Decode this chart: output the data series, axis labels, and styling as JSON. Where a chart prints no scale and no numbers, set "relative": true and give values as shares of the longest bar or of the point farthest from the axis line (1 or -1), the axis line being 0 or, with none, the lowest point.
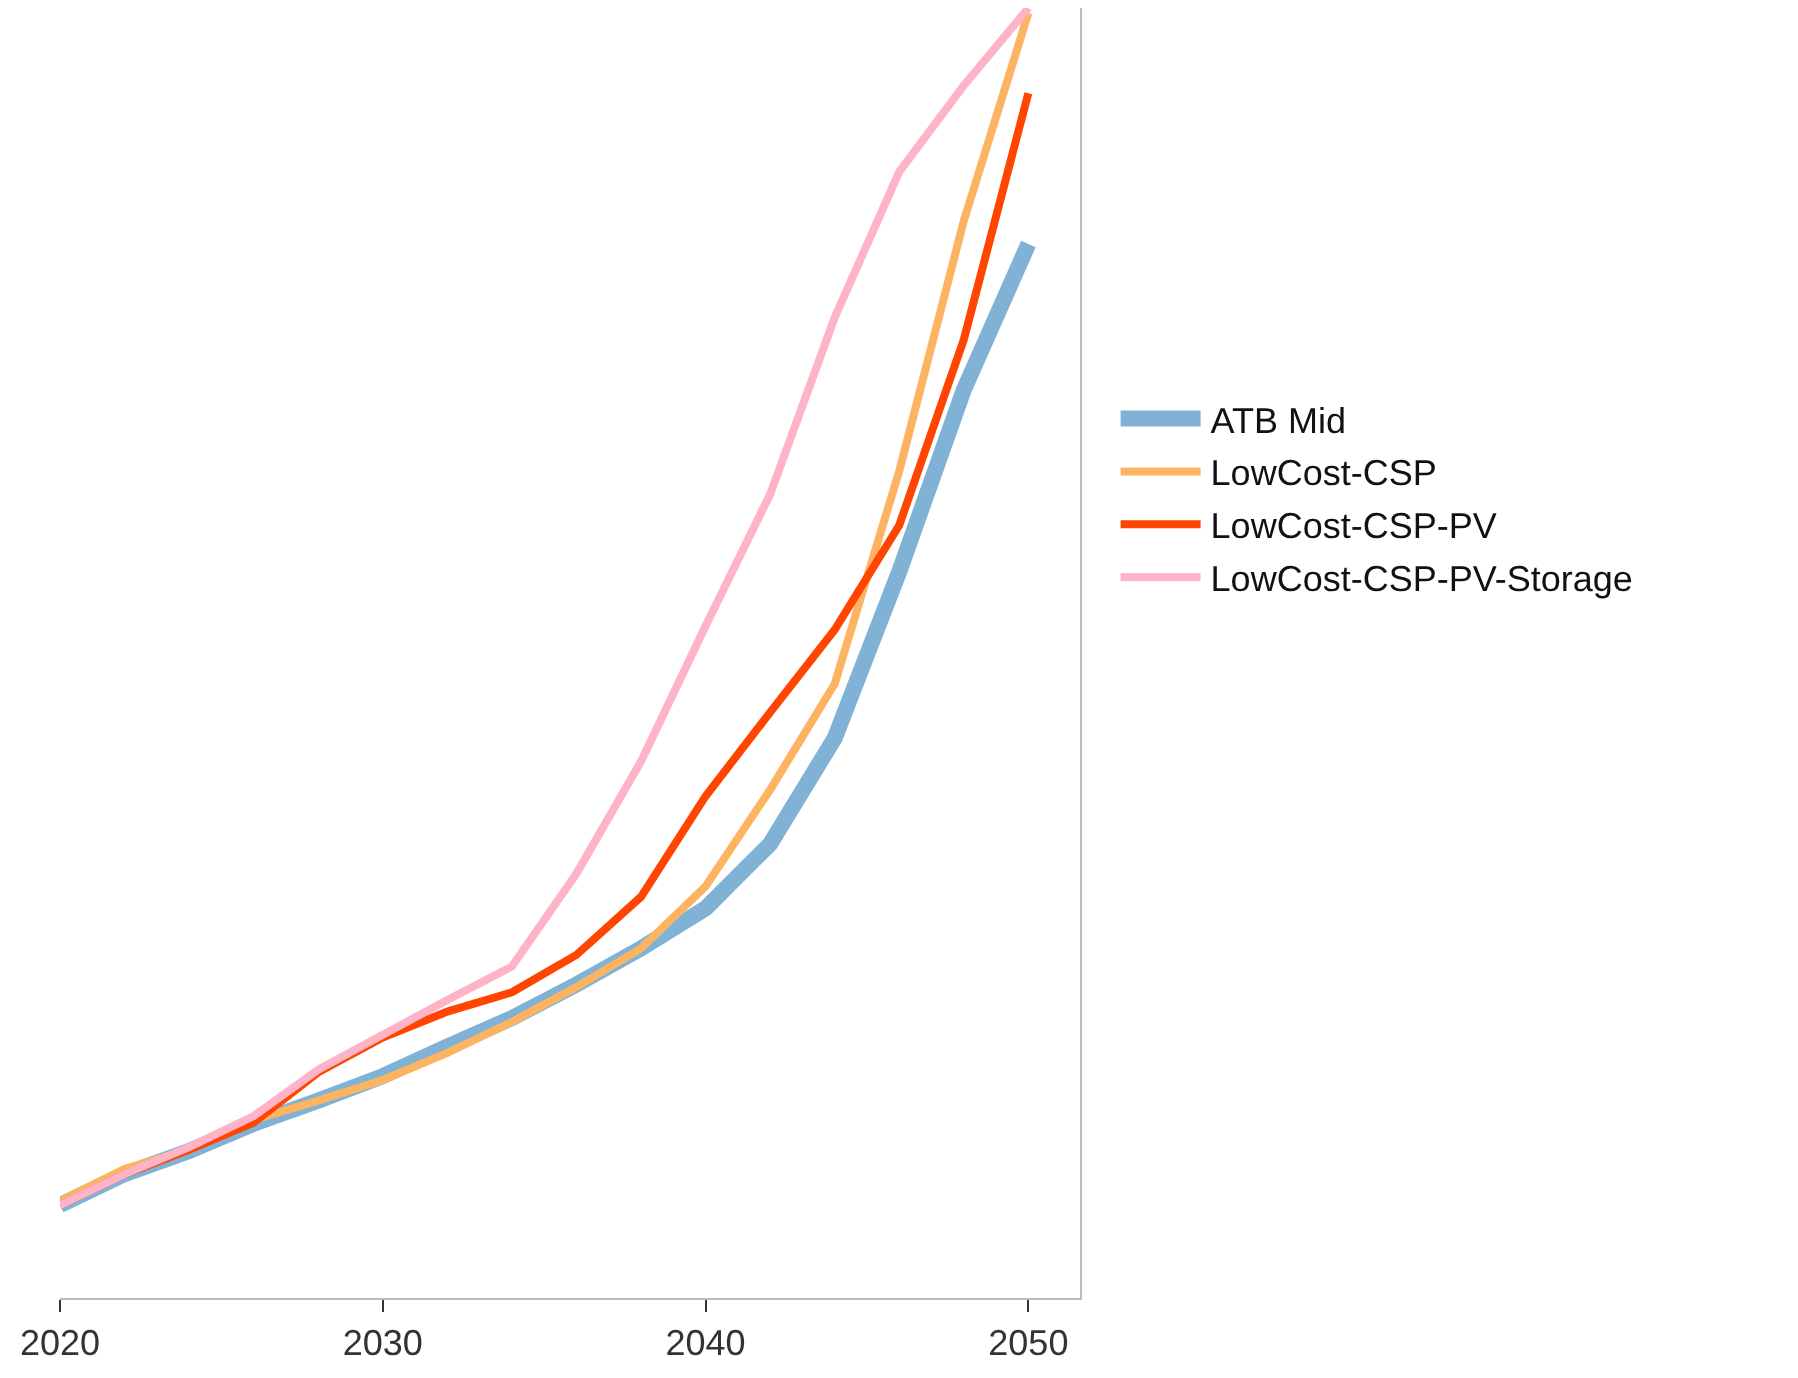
{
  "chart_data": {
    "type": "line",
    "relative": true,
    "x": [
      2020,
      2022,
      2024,
      2026,
      2028,
      2030,
      2032,
      2034,
      2036,
      2038,
      2040,
      2042,
      2044,
      2046,
      2048,
      2050
    ],
    "xlim": [
      2020,
      2051.6
    ],
    "xticks": [
      2020,
      2030,
      2040,
      2050
    ],
    "legend": "right",
    "marker": "none",
    "line_style": "solid",
    "series": [
      {
        "name": "ATB Mid",
        "color": "#7fb2d5",
        "values": [
          0.072,
          0.096,
          0.114,
          0.135,
          0.153,
          0.172,
          0.195,
          0.217,
          0.243,
          0.271,
          0.302,
          0.352,
          0.434,
          0.563,
          0.704,
          0.817
        ]
      },
      {
        "name": "LowCost-CSP",
        "color": "#fdb462",
        "values": [
          0.075,
          0.1,
          0.115,
          0.138,
          0.153,
          0.169,
          0.19,
          0.214,
          0.241,
          0.271,
          0.319,
          0.394,
          0.476,
          0.641,
          0.835,
          0.996
        ]
      },
      {
        "name": "LowCost-CSP-PV",
        "color": "#ff4500",
        "values": [
          0.072,
          0.096,
          0.115,
          0.136,
          0.175,
          0.202,
          0.222,
          0.237,
          0.266,
          0.311,
          0.389,
          0.454,
          0.518,
          0.599,
          0.743,
          0.934
        ]
      },
      {
        "name": "LowCost-CSP-PV-Storage",
        "color": "#ffb3c6",
        "values": [
          0.072,
          0.096,
          0.117,
          0.141,
          0.177,
          0.204,
          0.231,
          0.257,
          0.329,
          0.416,
          0.521,
          0.623,
          0.76,
          0.873,
          0.94,
          1.0
        ]
      }
    ]
  }
}
